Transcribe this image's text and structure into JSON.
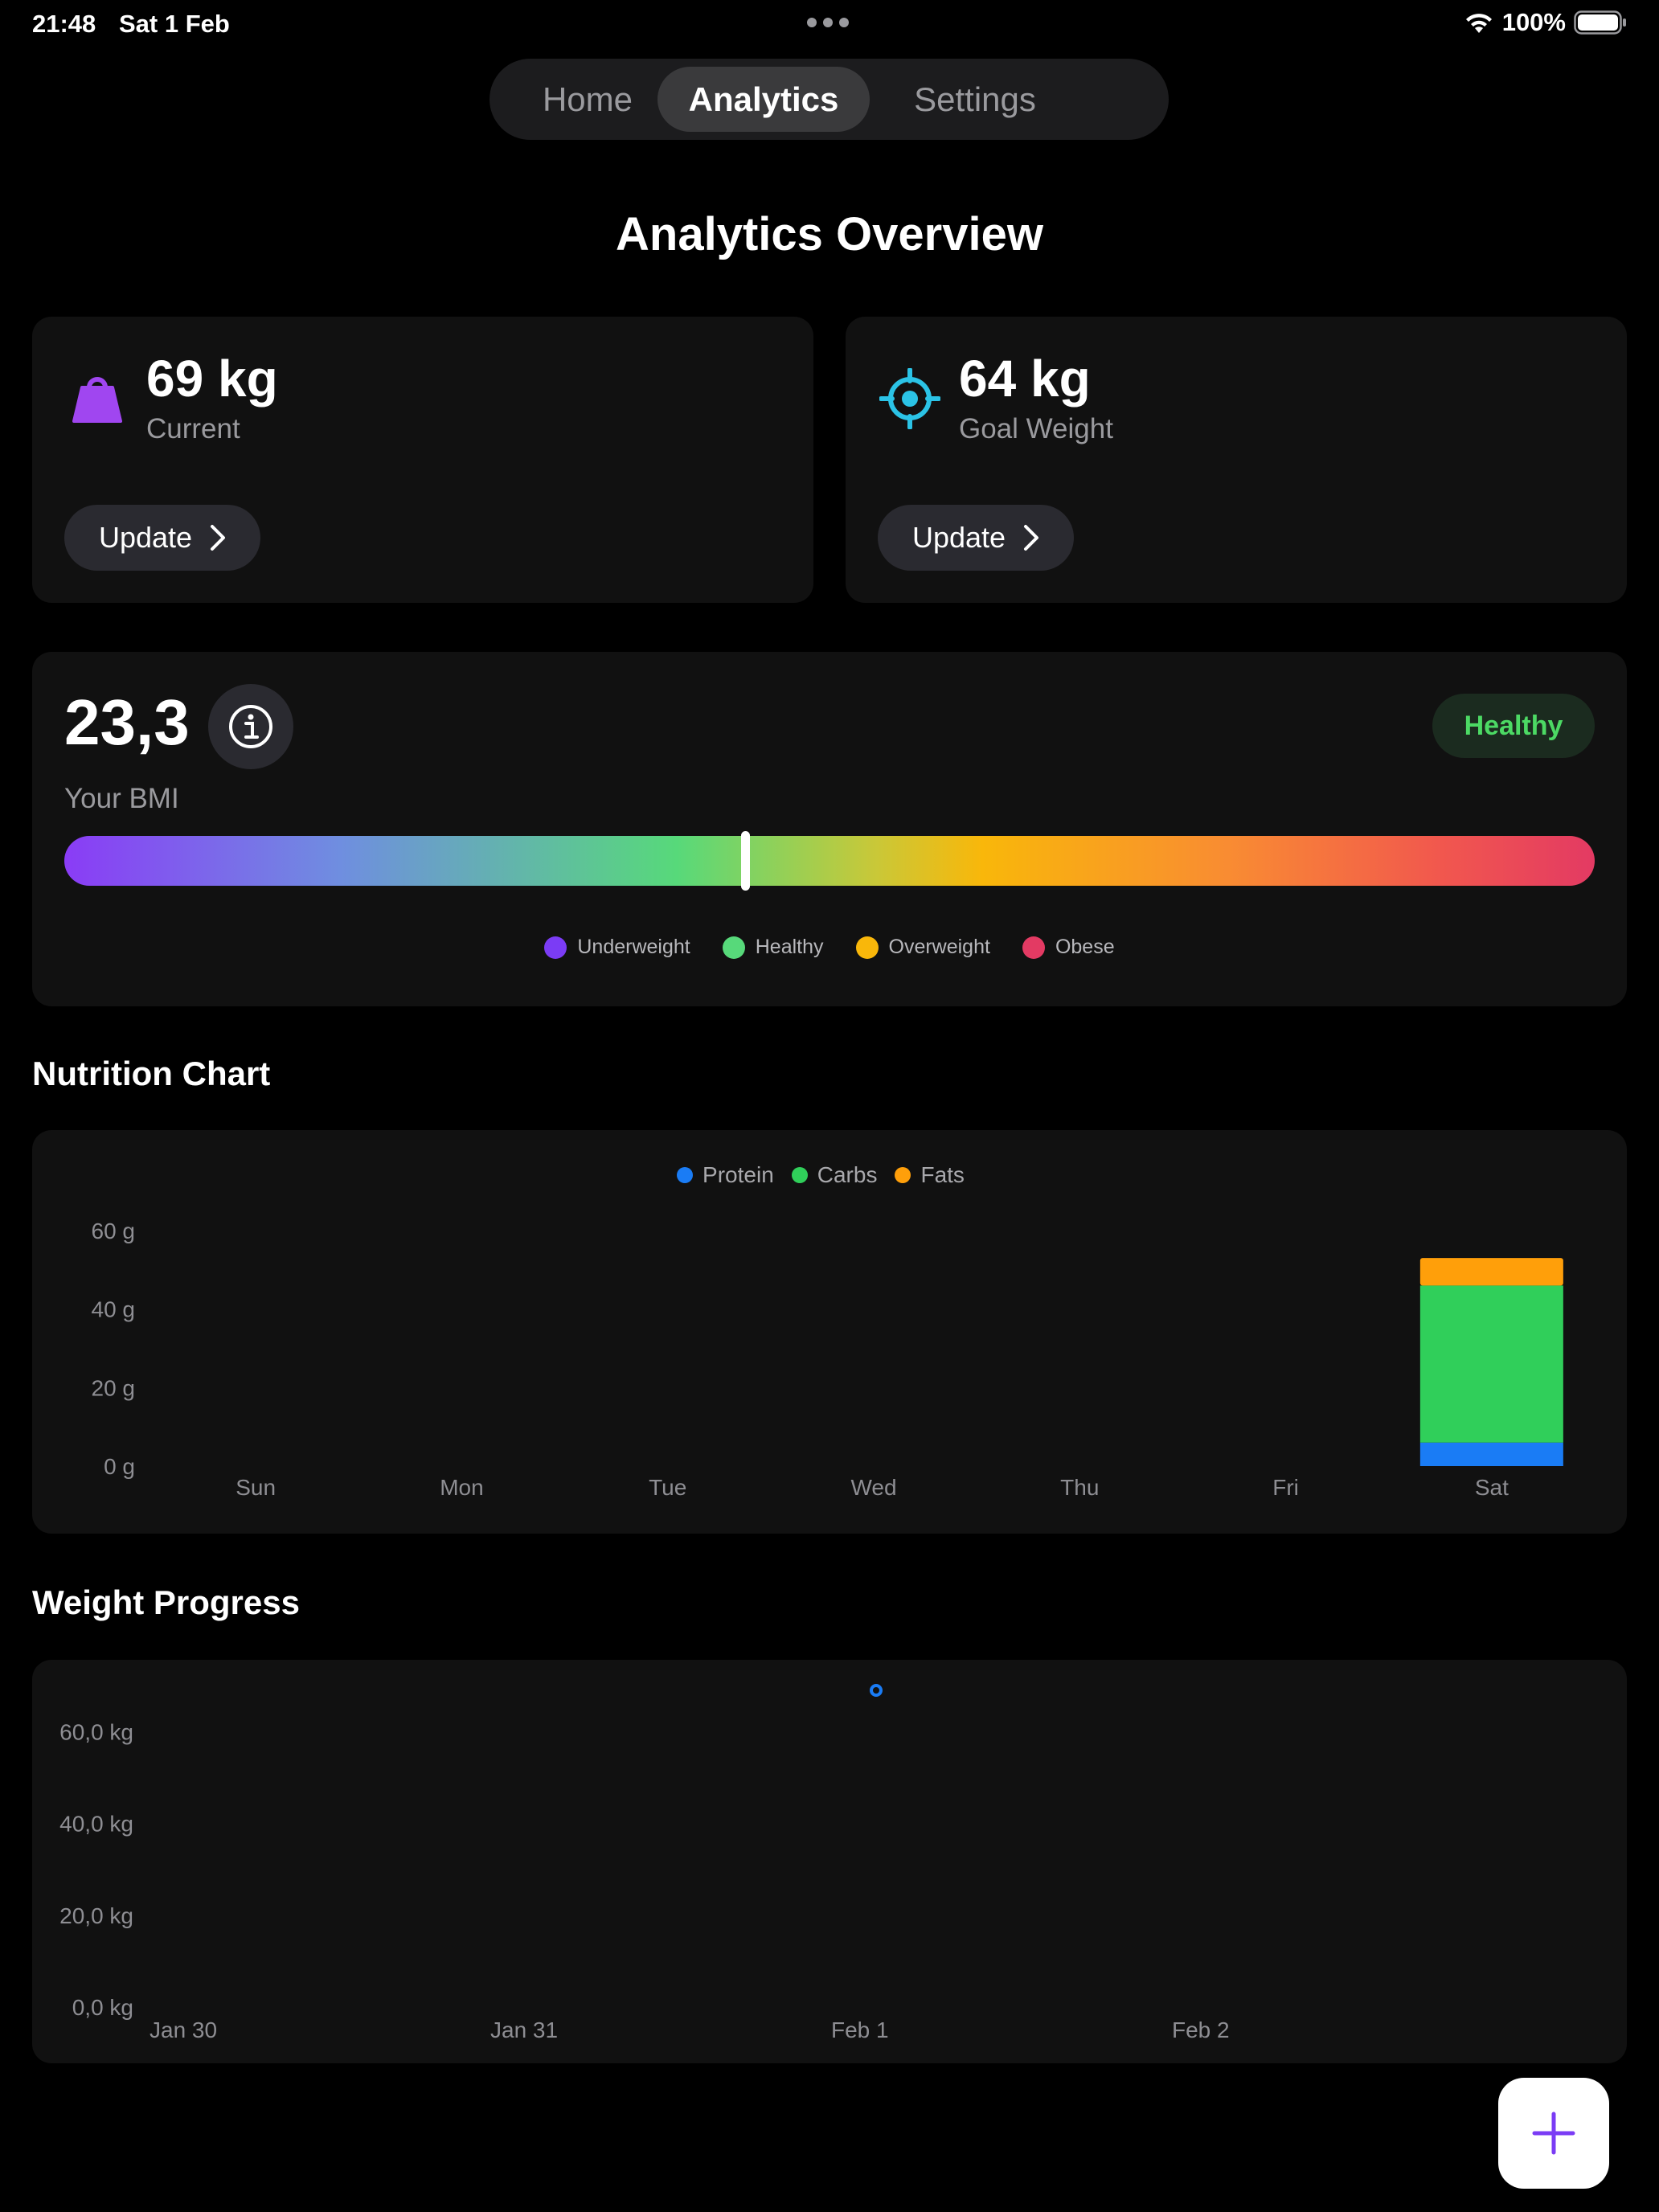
{
  "status_bar": {
    "time": "21:48",
    "date": "Sat 1 Feb",
    "battery": "100%"
  },
  "tabs": [
    {
      "label": "Home"
    },
    {
      "label": "Analytics"
    },
    {
      "label": "Settings"
    }
  ],
  "active_tab": "Analytics",
  "page_title": "Analytics Overview",
  "current_weight": {
    "value": "69 kg",
    "label": "Current",
    "button": "Update",
    "icon": "weight-icon",
    "icon_color": "#a046f0"
  },
  "goal_weight": {
    "value": "64 kg",
    "label": "Goal Weight",
    "button": "Update",
    "icon": "target-icon",
    "icon_color": "#2bc3e6"
  },
  "bmi": {
    "value": "23,3",
    "label": "Your BMI",
    "status": "Healthy",
    "marker_fraction": 0.445,
    "legend": [
      {
        "label": "Underweight",
        "color": "#7b3cf5"
      },
      {
        "label": "Healthy",
        "color": "#57d97a"
      },
      {
        "label": "Overweight",
        "color": "#f9b70a"
      },
      {
        "label": "Obese",
        "color": "#e33a63"
      }
    ]
  },
  "nutrition": {
    "title": "Nutrition Chart",
    "chart_data": {
      "type": "bar",
      "stacked": true,
      "categories": [
        "Sun",
        "Mon",
        "Tue",
        "Wed",
        "Thu",
        "Fri",
        "Sat"
      ],
      "series": [
        {
          "name": "Protein",
          "color": "#1a7cf5",
          "values": [
            0,
            0,
            0,
            0,
            0,
            0,
            6
          ]
        },
        {
          "name": "Carbs",
          "color": "#30cf5a",
          "values": [
            0,
            0,
            0,
            0,
            0,
            0,
            40
          ]
        },
        {
          "name": "Fats",
          "color": "#ff9f0a",
          "values": [
            0,
            0,
            0,
            0,
            0,
            0,
            7
          ]
        }
      ],
      "ylim": [
        0,
        60
      ],
      "yticks": [
        0,
        20,
        40,
        60
      ],
      "ytick_labels": [
        "0 g",
        "20 g",
        "40 g",
        "60 g"
      ],
      "legend_position": "top-center",
      "grid": false
    }
  },
  "weight_progress": {
    "title": "Weight Progress",
    "chart_data": {
      "type": "scatter",
      "x_tick_labels": [
        "Jan 30",
        "Jan 31",
        "Feb 1",
        "Feb 2"
      ],
      "points": [
        {
          "x": "Feb 1",
          "y": 69
        }
      ],
      "point_color": "#1a7cf5",
      "ylim": [
        0,
        69
      ],
      "yticks": [
        0,
        20,
        40,
        60
      ],
      "ytick_labels": [
        "0,0 kg",
        "20,0 kg",
        "40,0 kg",
        "60,0 kg"
      ],
      "grid": false
    }
  },
  "fab": {
    "icon": "plus-icon",
    "color": "#7b3cf5"
  }
}
